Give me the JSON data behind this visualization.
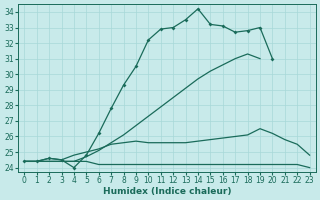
{
  "xlabel": "Humidex (Indice chaleur)",
  "line_color": "#1a6b5a",
  "bg_color": "#c8eaea",
  "grid_color": "#a8d8d8",
  "xlim": [
    -0.5,
    23.5
  ],
  "ylim": [
    23.7,
    34.5
  ],
  "yticks": [
    24,
    25,
    26,
    27,
    28,
    29,
    30,
    31,
    32,
    33,
    34
  ],
  "xticks": [
    0,
    1,
    2,
    3,
    4,
    5,
    6,
    7,
    8,
    9,
    10,
    11,
    12,
    13,
    14,
    15,
    16,
    17,
    18,
    19,
    20,
    21,
    22,
    23
  ],
  "x": [
    0,
    1,
    2,
    3,
    4,
    5,
    6,
    7,
    8,
    9,
    10,
    11,
    12,
    13,
    14,
    15,
    16,
    17,
    18,
    19,
    20,
    21,
    22,
    23
  ],
  "y_jagged": [
    24.4,
    24.4,
    24.6,
    24.5,
    24.0,
    24.8,
    26.2,
    27.8,
    29.3,
    30.5,
    32.2,
    32.9,
    33.0,
    33.5,
    34.2,
    33.2,
    33.1,
    32.7,
    32.8,
    33.0,
    31.0,
    null,
    null,
    null
  ],
  "y_diagonal": [
    24.4,
    24.4,
    24.4,
    24.4,
    24.4,
    24.7,
    25.1,
    25.6,
    26.1,
    26.7,
    27.3,
    27.9,
    28.5,
    29.1,
    29.7,
    30.2,
    30.6,
    31.0,
    31.3,
    31.0,
    null,
    null,
    null,
    null
  ],
  "y_lower_curve": [
    24.4,
    24.4,
    24.6,
    24.5,
    24.8,
    25.0,
    25.2,
    25.5,
    25.6,
    25.7,
    25.6,
    25.6,
    25.6,
    25.6,
    25.7,
    25.8,
    25.9,
    26.0,
    26.1,
    26.5,
    26.2,
    25.8,
    25.5,
    24.8
  ],
  "y_flat_bottom": [
    24.4,
    24.4,
    24.4,
    24.4,
    24.4,
    24.4,
    24.2,
    24.2,
    24.2,
    24.2,
    24.2,
    24.2,
    24.2,
    24.2,
    24.2,
    24.2,
    24.2,
    24.2,
    24.2,
    24.2,
    24.2,
    24.2,
    24.2,
    24.0
  ]
}
